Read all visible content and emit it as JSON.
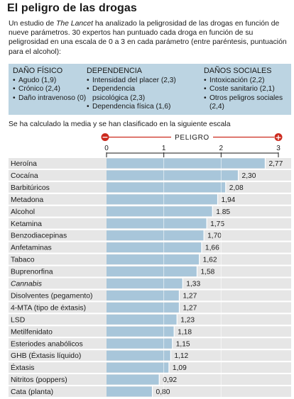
{
  "title": "El peligro de las drogas",
  "intro": {
    "pre": "Un estudio de ",
    "journal": "The Lancet",
    "post": " ha analizado la peligrosidad de las drogas en función de nueve parámetros. 30 expertos han puntuado cada droga en función de su peligrosidad en una escala de 0 a 3 en cada parámetro (entre paréntesis, puntuación para el alcohol):"
  },
  "parameters": [
    {
      "heading": "DAÑO FÍSICO",
      "items": [
        "Agudo (1,9)",
        "Crónico (2,4)",
        "Daño intravenoso (0)"
      ]
    },
    {
      "heading": "DEPENDENCIA",
      "items": [
        "Intensidad del placer (2,3)",
        "Dependencia psicológica (2,3)",
        "Dependencia física (1,6)"
      ]
    },
    {
      "heading": "DAÑOS SOCIALES",
      "items": [
        "Intoxicación (2,2)",
        "Coste sanitario (2,1)",
        "Otros peligros sociales (2,4)"
      ]
    }
  ],
  "bullet": "•",
  "scale_note": "Se ha calculado la media y se han clasificado en la siguiente escala",
  "scale": {
    "label": "PELIGRO",
    "minus": "−",
    "plus": "+"
  },
  "colors": {
    "bar": "#a8c6da",
    "panel": "#bcd4e2",
    "row": "#e6e6e6",
    "accent": "#cc2a1e"
  },
  "chart_data": {
    "type": "bar",
    "orientation": "horizontal",
    "xlim": [
      0,
      3
    ],
    "ticks": [
      0,
      1,
      2,
      3
    ],
    "categories": [
      "Heroína",
      "Cocaína",
      "Barbitúricos",
      "Metadona",
      "Alcohol",
      "Ketamina",
      "Benzodiacepinas",
      "Anfetaminas",
      "Tabaco",
      "Buprenorfina",
      "Cannabis",
      "Disolventes (pegamento)",
      "4-MTA (tipo de éxtasis)",
      "LSD",
      "Metilfenidato",
      "Esteriodes anabólicos",
      "GHB (Éxtasis líquido)",
      "Éxtasis",
      "Nitritos (poppers)",
      "Cata (planta)"
    ],
    "values": [
      2.77,
      2.3,
      2.08,
      1.94,
      1.85,
      1.75,
      1.7,
      1.66,
      1.62,
      1.58,
      1.33,
      1.27,
      1.27,
      1.23,
      1.18,
      1.15,
      1.12,
      1.09,
      0.92,
      0.8
    ],
    "value_labels": [
      "2,77",
      "2,30",
      "2,08",
      "1,94",
      "1,85",
      "1,75",
      "1,70",
      "1,66",
      "1,62",
      "1,58",
      "1,33",
      "1,27",
      "1,27",
      "1,23",
      "1,18",
      "1,15",
      "1,12",
      "1,09",
      "0,92",
      "0,80"
    ]
  }
}
